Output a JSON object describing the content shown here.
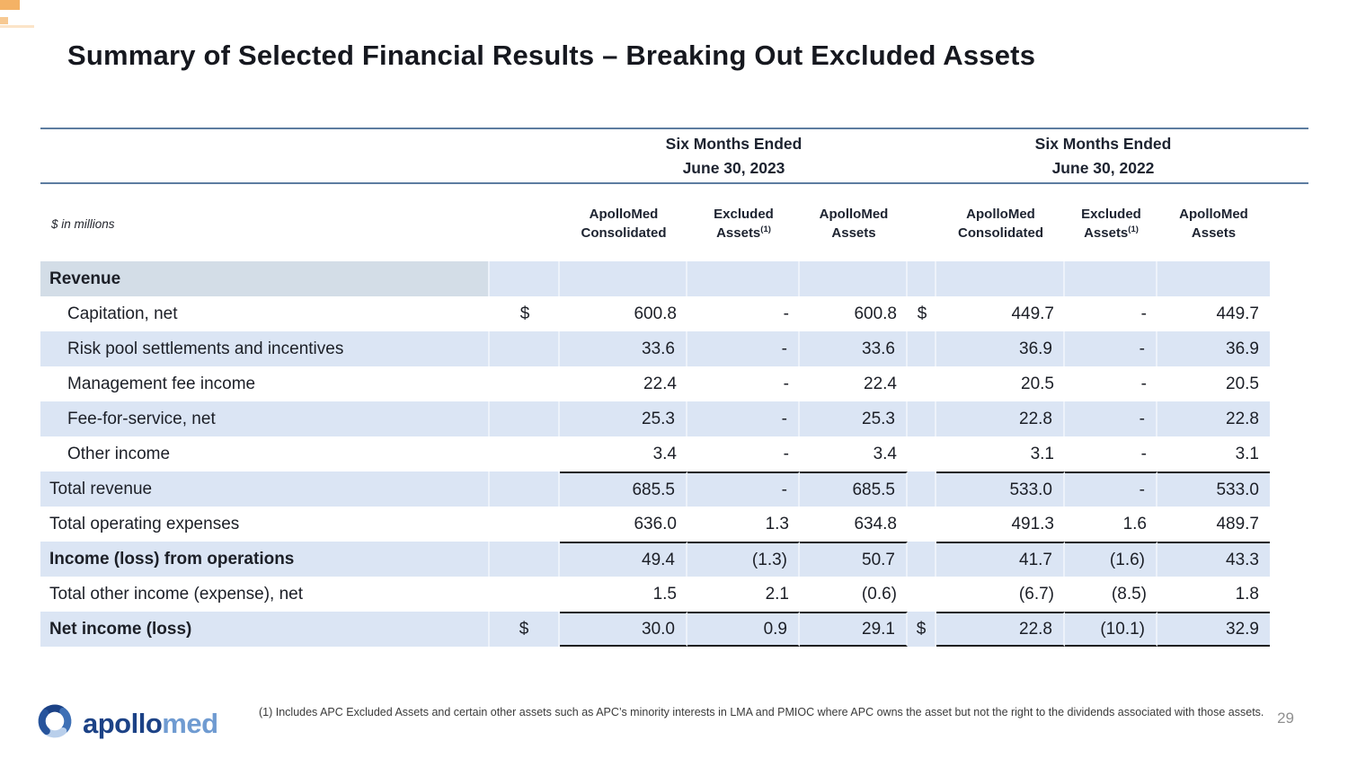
{
  "slide": {
    "title": "Summary of Selected Financial Results – Breaking Out Excluded Assets",
    "units_label": "$ in millions",
    "footnote": "(1) Includes APC Excluded Assets and certain other assets such as APC’s minority interests in LMA and PMIOC where APC owns the asset but not the right to the dividends associated with those assets.",
    "page_number": "29"
  },
  "logo": {
    "brand_part1": "apollo",
    "brand_part2": "med"
  },
  "colors": {
    "shade": "#dbe5f4",
    "shadeDark": "#d3dde7",
    "rule": "#5d7da0",
    "lineInk": "#1a1a1a",
    "ink": "#1c1f27",
    "orange": "#f2a54a",
    "logoDark": "#1c4286",
    "logoMid": "#3e70b5",
    "logoSteel": "#27549c",
    "logoLight": "#6f9bd1",
    "logoPale": "#b9cfeb"
  },
  "table": {
    "groups": [
      {
        "period_line1": "Six Months Ended",
        "period_line2": "June 30, 2023",
        "columns": [
          {
            "line1": "ApolloMed",
            "line2": "Consolidated",
            "sup": ""
          },
          {
            "line1": "Excluded",
            "line2": "Assets",
            "sup": "(1)"
          },
          {
            "line1": "ApolloMed",
            "line2": "Assets",
            "sup": ""
          }
        ]
      },
      {
        "period_line1": "Six Months Ended",
        "period_line2": "June 30, 2022",
        "columns": [
          {
            "line1": "ApolloMed",
            "line2": "Consolidated",
            "sup": ""
          },
          {
            "line1": "Excluded",
            "line2": "Assets",
            "sup": "(1)"
          },
          {
            "line1": "ApolloMed",
            "line2": "Assets",
            "sup": ""
          }
        ]
      }
    ],
    "rows": [
      {
        "label": "Revenue",
        "bold": true,
        "shaded": true,
        "section": true,
        "indent": false,
        "d1": "",
        "v": [
          "",
          "",
          ""
        ],
        "d2": "",
        "w": [
          "",
          "",
          ""
        ]
      },
      {
        "label": "Capitation, net",
        "indent": true,
        "d1": "$",
        "v": [
          "600.8",
          "-",
          "600.8"
        ],
        "d2": "$",
        "w": [
          "449.7",
          "-",
          "449.7"
        ]
      },
      {
        "label": "Risk pool settlements and incentives",
        "indent": true,
        "shaded": true,
        "d1": "",
        "v": [
          "33.6",
          "-",
          "33.6"
        ],
        "d2": "",
        "w": [
          "36.9",
          "-",
          "36.9"
        ]
      },
      {
        "label": "Management fee income",
        "indent": true,
        "d1": "",
        "v": [
          "22.4",
          "-",
          "22.4"
        ],
        "d2": "",
        "w": [
          "20.5",
          "-",
          "20.5"
        ]
      },
      {
        "label": "Fee-for-service, net",
        "indent": true,
        "shaded": true,
        "d1": "",
        "v": [
          "25.3",
          "-",
          "25.3"
        ],
        "d2": "",
        "w": [
          "22.8",
          "-",
          "22.8"
        ]
      },
      {
        "label": "Other income",
        "indent": true,
        "d1": "",
        "v": [
          "3.4",
          "-",
          "3.4"
        ],
        "d2": "",
        "w": [
          "3.1",
          "-",
          "3.1"
        ]
      },
      {
        "label": "Total revenue",
        "shaded": true,
        "border_top": true,
        "d1": "",
        "v": [
          "685.5",
          "-",
          "685.5"
        ],
        "d2": "",
        "w": [
          "533.0",
          "-",
          "533.0"
        ]
      },
      {
        "label": "Total operating expenses",
        "d1": "",
        "v": [
          "636.0",
          "1.3",
          "634.8"
        ],
        "d2": "",
        "w": [
          "491.3",
          "1.6",
          "489.7"
        ]
      },
      {
        "label": "Income (loss) from operations",
        "bold": true,
        "shaded": true,
        "border_top": true,
        "d1": "",
        "v": [
          "49.4",
          "(1.3)",
          "50.7"
        ],
        "d2": "",
        "w": [
          "41.7",
          "(1.6)",
          "43.3"
        ]
      },
      {
        "label": "Total other income (expense), net",
        "d1": "",
        "v": [
          "1.5",
          "2.1",
          "(0.6)"
        ],
        "d2": "",
        "w": [
          "(6.7)",
          "(8.5)",
          "1.8"
        ]
      },
      {
        "label": "Net income (loss)",
        "bold": true,
        "shaded": true,
        "border_top": true,
        "border_bottom": true,
        "d1": "$",
        "v": [
          "30.0",
          "0.9",
          "29.1"
        ],
        "d2": "$",
        "w": [
          "22.8",
          "(10.1)",
          "32.9"
        ]
      }
    ]
  }
}
